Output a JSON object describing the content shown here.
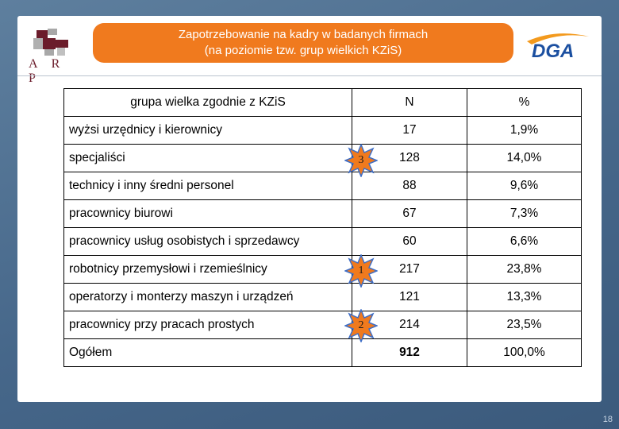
{
  "header": {
    "title_line1": "Zapotrzebowanie na kadry w badanych firmach",
    "title_line2": "(na poziomie tzw. grup wielkich KZiS)"
  },
  "logos": {
    "arp_text": "A R P",
    "dga_text": "DGA"
  },
  "table": {
    "headers": {
      "category": "grupa wielka zgodnie z KZiS",
      "n": "N",
      "percent": "%"
    },
    "rows": [
      {
        "category": "wyżsi urzędnicy i kierownicy",
        "n": "17",
        "percent": "1,9%"
      },
      {
        "category": "specjaliści",
        "n": "128",
        "percent": "14,0%",
        "rank": "3"
      },
      {
        "category": "technicy i inny średni personel",
        "n": "88",
        "percent": "9,6%"
      },
      {
        "category": "pracownicy biurowi",
        "n": "67",
        "percent": "7,3%"
      },
      {
        "category": "pracownicy usług osobistych i sprzedawcy",
        "n": "60",
        "percent": "6,6%"
      },
      {
        "category": "robotnicy przemysłowi i rzemieślnicy",
        "n": "217",
        "percent": "23,8%",
        "rank": "1"
      },
      {
        "category": "operatorzy i monterzy maszyn i urządzeń",
        "n": "121",
        "percent": "13,3%"
      },
      {
        "category": "pracownicy przy pracach prostych",
        "n": "214",
        "percent": "23,5%",
        "rank": "2"
      }
    ],
    "total": {
      "category": "Ogółem",
      "n": "912",
      "percent": "100,0%"
    }
  },
  "colors": {
    "title_bg": "#f07a1e",
    "badge_fill": "#f07a1e",
    "badge_accent": "#3d6ec7",
    "arp_maroon": "#6b1c2b",
    "arp_gray": "#9a9a9a",
    "dga_blue": "#1b4fa0",
    "dga_orange": "#f39a1e"
  },
  "page_number": "18"
}
